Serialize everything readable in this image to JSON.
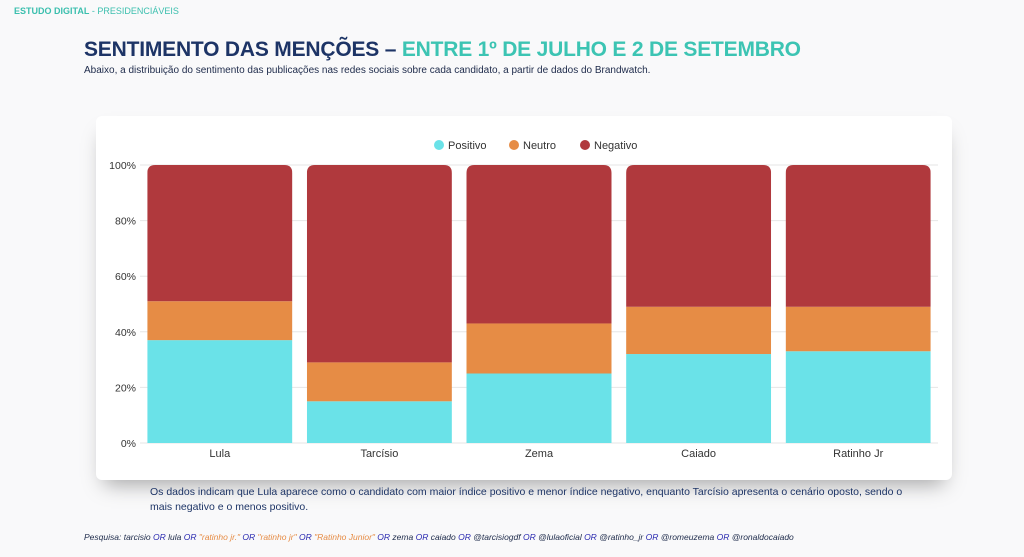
{
  "header": {
    "brand": "ESTUDO DIGITAL",
    "separator": " - ",
    "section": "PRESIDENCIÁVEIS"
  },
  "title": {
    "main": "SENTIMENTO DAS MENÇÕES – ",
    "highlight": "ENTRE 1º DE JULHO E 2 DE SETEMBRO"
  },
  "subtitle": "Abaixo, a distribuição do sentimento das publicações nas redes sociais sobre cada candidato, a partir de dados do Brandwatch.",
  "note": "Os dados indicam que Lula aparece como o candidato com maior índice positivo e menor índice negativo, enquanto Tarcísio apresenta o cenário oposto, sendo o mais negativo e o menos positivo.",
  "search": {
    "label": "Pesquisa: ",
    "terms": [
      {
        "t": "tarcisio",
        "k": "plain"
      },
      {
        "t": " OR ",
        "k": "or"
      },
      {
        "t": "lula",
        "k": "plain"
      },
      {
        "t": " OR ",
        "k": "or"
      },
      {
        "t": "\"ratinho jr.\"",
        "k": "q"
      },
      {
        "t": " OR ",
        "k": "or"
      },
      {
        "t": "\"ratinho jr\"",
        "k": "q"
      },
      {
        "t": " OR ",
        "k": "or"
      },
      {
        "t": "\"Ratinho Junior\"",
        "k": "q"
      },
      {
        "t": " OR ",
        "k": "or"
      },
      {
        "t": "zema",
        "k": "plain"
      },
      {
        "t": " OR ",
        "k": "or"
      },
      {
        "t": "caiado",
        "k": "plain"
      },
      {
        "t": " OR ",
        "k": "or"
      },
      {
        "t": "@tarcisiogdf",
        "k": "plain"
      },
      {
        "t": " OR ",
        "k": "or"
      },
      {
        "t": "@lulaoficial",
        "k": "plain"
      },
      {
        "t": " OR ",
        "k": "or"
      },
      {
        "t": "@ratinho_jr",
        "k": "plain"
      },
      {
        "t": " OR ",
        "k": "or"
      },
      {
        "t": "@romeuzema",
        "k": "plain"
      },
      {
        "t": " OR ",
        "k": "or"
      },
      {
        "t": "@ronaldocaiado",
        "k": "plain"
      }
    ]
  },
  "chart_data": {
    "type": "bar",
    "stacked": true,
    "categories": [
      "Lula",
      "Tarcísio",
      "Zema",
      "Caiado",
      "Ratinho Jr"
    ],
    "series": [
      {
        "name": "Positivo",
        "color": "#6ae2e8",
        "values": [
          37,
          15,
          25,
          32,
          33
        ]
      },
      {
        "name": "Neutro",
        "color": "#e68c45",
        "values": [
          14,
          14,
          18,
          17,
          16
        ]
      },
      {
        "name": "Negativo",
        "color": "#b0393d",
        "values": [
          49,
          71,
          57,
          51,
          51
        ]
      }
    ],
    "ylim": [
      0,
      100
    ],
    "yticks": [
      "0%",
      "20%",
      "40%",
      "60%",
      "80%",
      "100%"
    ],
    "legend": "top-center",
    "grid": true
  }
}
